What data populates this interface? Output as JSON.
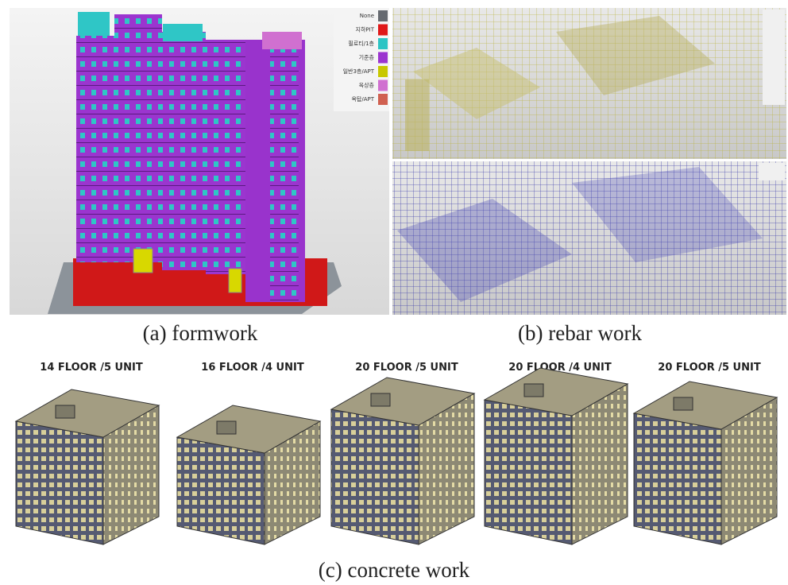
{
  "panels": [
    {
      "caption": "(a) formwork",
      "legend": [
        "None",
        "지하PIT",
        "필로티/1층",
        "기준층",
        "일반3층/APT",
        "옥상층",
        "옥탑/APT"
      ]
    },
    {
      "caption": "(b) rebar work"
    },
    {
      "caption": "(c) concrete work",
      "buildings": [
        "14 FLOOR /5 UNIT",
        "16 FLOOR /4 UNIT",
        "20 FLOOR /5 UNIT",
        "20 FLOOR /4 UNIT",
        "20 FLOOR /5 UNIT"
      ]
    }
  ]
}
